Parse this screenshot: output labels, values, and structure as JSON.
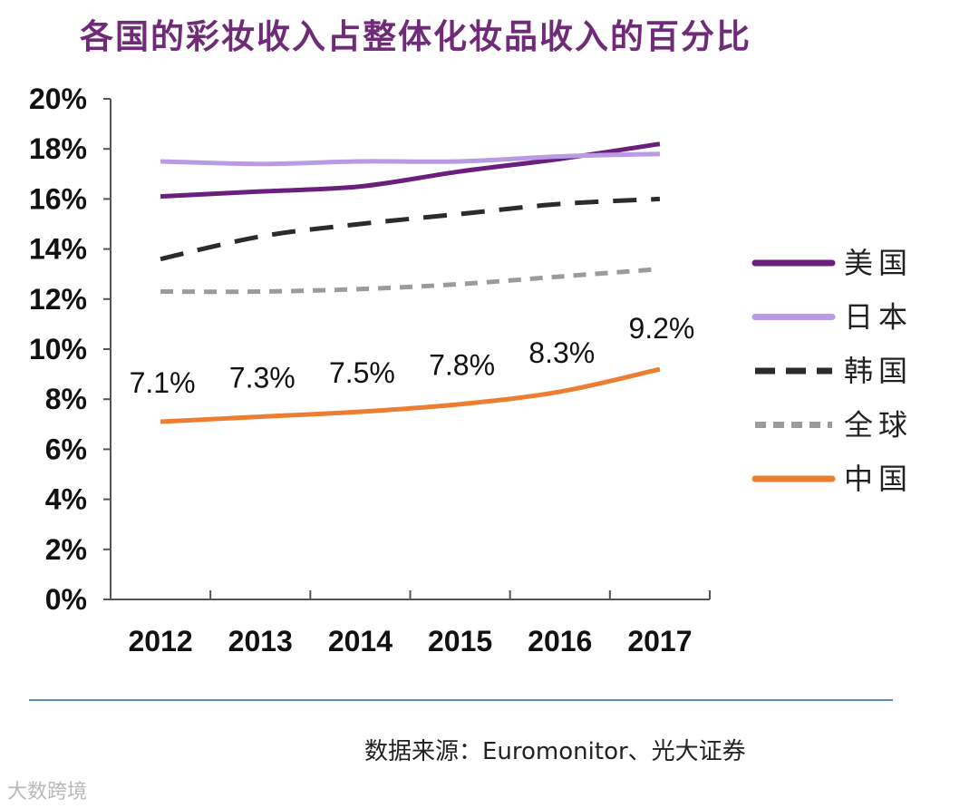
{
  "chart_data": {
    "type": "line",
    "title": "各国的彩妆收入占整体化妆品收入的百分比",
    "categories": [
      "2012",
      "2013",
      "2014",
      "2015",
      "2016",
      "2017"
    ],
    "ylim": [
      0,
      20
    ],
    "yticks": [
      0,
      2,
      4,
      6,
      8,
      10,
      12,
      14,
      16,
      18,
      20
    ],
    "ytick_labels": [
      "0%",
      "2%",
      "4%",
      "6%",
      "8%",
      "10%",
      "12%",
      "14%",
      "16%",
      "18%",
      "20%"
    ],
    "grid": false,
    "legend_position": "right",
    "series": [
      {
        "name": "美国",
        "values": [
          16.1,
          16.3,
          16.5,
          17.1,
          17.6,
          18.2
        ],
        "color": "#6b1f7c",
        "style": "solid"
      },
      {
        "name": "日本",
        "values": [
          17.5,
          17.4,
          17.5,
          17.5,
          17.7,
          17.8
        ],
        "color": "#b89be3",
        "style": "solid"
      },
      {
        "name": "韩国",
        "values": [
          13.6,
          14.5,
          15.0,
          15.4,
          15.8,
          16.0
        ],
        "color": "#2b2b2b",
        "style": "dashed"
      },
      {
        "name": "全球",
        "values": [
          12.3,
          12.3,
          12.4,
          12.6,
          12.9,
          13.2
        ],
        "color": "#9b9b9b",
        "style": "dotted"
      },
      {
        "name": "中国",
        "values": [
          7.1,
          7.3,
          7.5,
          7.8,
          8.3,
          9.2
        ],
        "color": "#ed7d31",
        "style": "solid",
        "data_labels": [
          "7.1%",
          "7.3%",
          "7.5%",
          "7.8%",
          "8.3%",
          "9.2%"
        ]
      }
    ]
  },
  "footer": {
    "source": "数据来源：Euromonitor、光大证券",
    "watermark": "大数跨境"
  }
}
